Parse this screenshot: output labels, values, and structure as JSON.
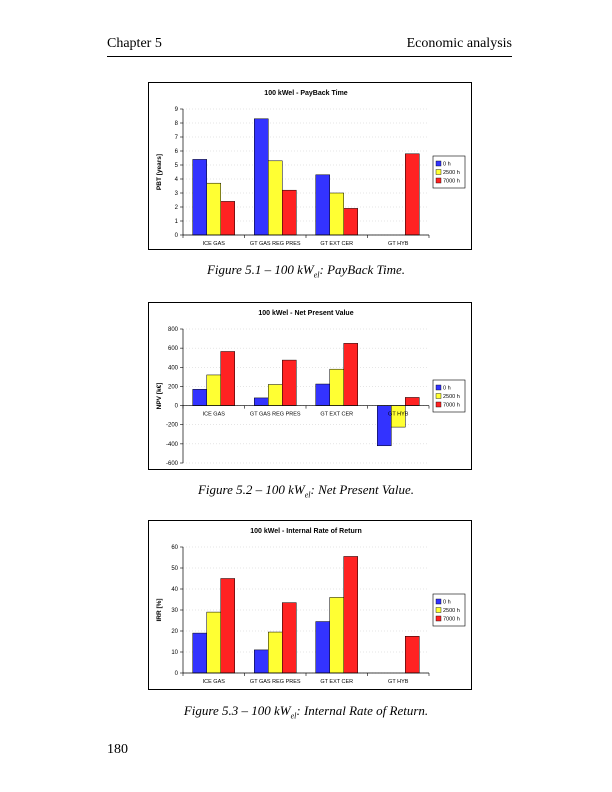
{
  "header": {
    "chapter": "Chapter 5",
    "section": "Economic analysis"
  },
  "page_number": "180",
  "legend": [
    "0 h",
    "2500 h",
    "7000 h"
  ],
  "colors": {
    "0h": "#3333ff",
    "2500h": "#ffff33",
    "7000h": "#ff2222"
  },
  "figures": [
    {
      "caption_prefix": "Figure 5.1 – 100 kW",
      "caption_sub": "el",
      "caption_suffix": ": PayBack Time."
    },
    {
      "caption_prefix": "Figure 5.2 – 100 kW",
      "caption_sub": "el",
      "caption_suffix": ": Net Present Value."
    },
    {
      "caption_prefix": "Figure 5.3 – 100 kW",
      "caption_sub": "el",
      "caption_suffix": ": Internal Rate of Return."
    }
  ],
  "chart_data": [
    {
      "type": "bar",
      "title": "100 kWel - PayBack Time",
      "xlabel": "",
      "ylabel": "PBT [years]",
      "categories": [
        "ICE GAS",
        "GT GAS REG PRES",
        "GT EXT CER",
        "GT HYB"
      ],
      "series": [
        {
          "name": "0 h",
          "values": [
            5.4,
            8.3,
            4.3,
            null
          ]
        },
        {
          "name": "2500 h",
          "values": [
            3.7,
            5.3,
            3.0,
            null
          ]
        },
        {
          "name": "7000 h",
          "values": [
            2.4,
            3.2,
            1.9,
            5.8
          ]
        }
      ],
      "ylim": [
        0,
        9
      ],
      "yticks": [
        0,
        1,
        2,
        3,
        4,
        5,
        6,
        7,
        8,
        9
      ],
      "legend_position": "right"
    },
    {
      "type": "bar",
      "title": "100 kWel - Net Present Value",
      "xlabel": "",
      "ylabel": "NPV [k€]",
      "categories": [
        "ICE GAS",
        "GT GAS REG PRES",
        "GT EXT CER",
        "GT HYB"
      ],
      "series": [
        {
          "name": "0 h",
          "values": [
            170,
            80,
            225,
            -420
          ]
        },
        {
          "name": "2500 h",
          "values": [
            320,
            220,
            380,
            -225
          ]
        },
        {
          "name": "7000 h",
          "values": [
            565,
            475,
            650,
            85
          ]
        }
      ],
      "ylim": [
        -600,
        800
      ],
      "yticks": [
        -600,
        -400,
        -200,
        0,
        200,
        400,
        600,
        800
      ],
      "legend_position": "right"
    },
    {
      "type": "bar",
      "title": "100 kWel - Internal Rate of Return",
      "xlabel": "",
      "ylabel": "IRR [%]",
      "categories": [
        "ICE GAS",
        "GT GAS REG PRES",
        "GT EXT CER",
        "GT HYB"
      ],
      "series": [
        {
          "name": "0 h",
          "values": [
            19,
            11,
            24.5,
            null
          ]
        },
        {
          "name": "2500 h",
          "values": [
            29,
            19.5,
            36,
            null
          ]
        },
        {
          "name": "7000 h",
          "values": [
            45,
            33.5,
            55.5,
            17.5
          ]
        }
      ],
      "ylim": [
        0,
        60
      ],
      "yticks": [
        0,
        10,
        20,
        30,
        40,
        50,
        60
      ],
      "legend_position": "right"
    }
  ]
}
